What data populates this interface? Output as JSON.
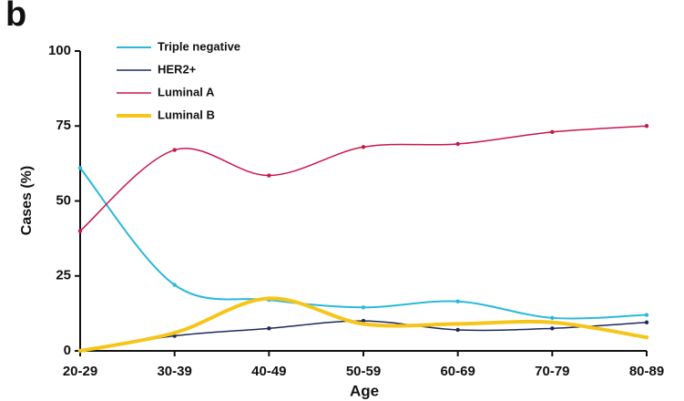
{
  "panel_label": "b",
  "chart_data": {
    "type": "line",
    "smooth": true,
    "legend": "upper left",
    "x_label": "Age",
    "y_label": "Cases (%)",
    "categories": [
      "20-29",
      "30-39",
      "40-49",
      "50-59",
      "60-69",
      "70-79",
      "80-89"
    ],
    "ylim": [
      0,
      100
    ],
    "yticks": [
      0,
      25,
      50,
      75,
      100
    ],
    "grid": false,
    "series": [
      {
        "name": "Triple negative",
        "color": "#2bb8dc",
        "width": 2,
        "values": [
          61,
          22,
          17,
          14.5,
          16.5,
          11,
          12
        ]
      },
      {
        "name": "HER2+",
        "color": "#1c2a5c",
        "width": 1.5,
        "values": [
          0,
          5,
          7.5,
          10,
          7,
          7.5,
          9.5
        ]
      },
      {
        "name": "Luminal A",
        "color": "#c8174a",
        "width": 1.5,
        "values": [
          40,
          67,
          58.5,
          68,
          69,
          73,
          75
        ]
      },
      {
        "name": "Luminal B",
        "color": "#f6c51a",
        "width": 4,
        "values": [
          0,
          6,
          17.5,
          9,
          9,
          9.5,
          4.5
        ]
      }
    ]
  }
}
